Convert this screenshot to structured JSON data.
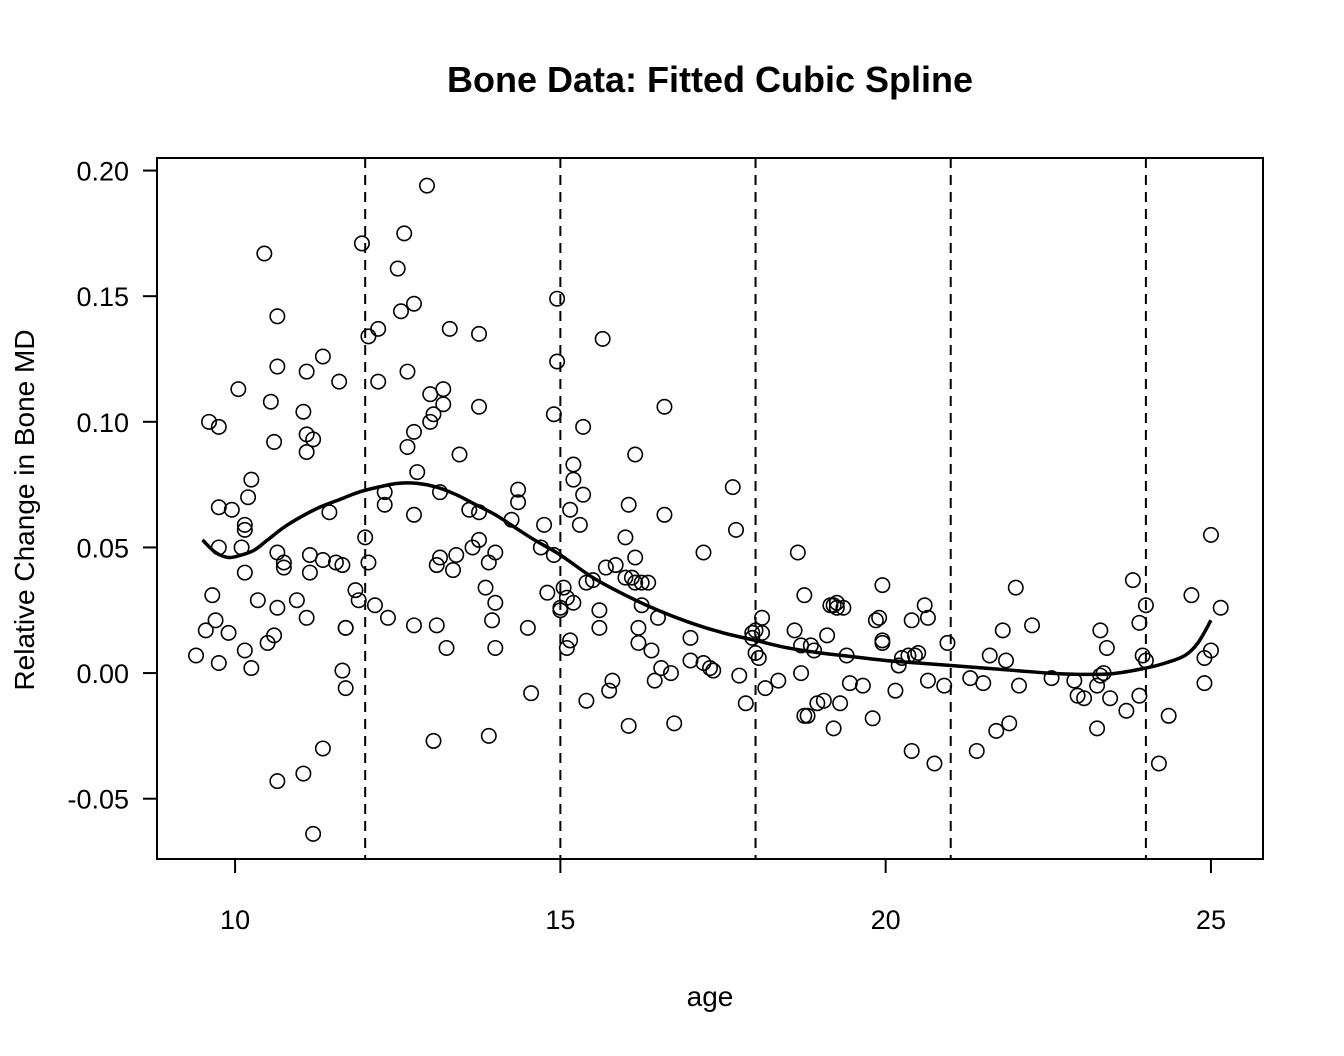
{
  "chart_data": {
    "type": "scatter",
    "title": "Bone Data: Fitted Cubic Spline",
    "xlabel": "age",
    "ylabel": "Relative Change in Bone MD",
    "xlim": [
      8.8,
      25.8
    ],
    "ylim": [
      -0.074,
      0.205
    ],
    "x_ticks": [
      10,
      15,
      20,
      25
    ],
    "y_ticks": [
      -0.05,
      0.0,
      0.05,
      0.1,
      0.15,
      0.2
    ],
    "x_tick_labels": [
      "10",
      "15",
      "20",
      "25"
    ],
    "y_tick_labels": [
      "-0.05",
      "0.00",
      "0.05",
      "0.10",
      "0.15",
      "0.20"
    ],
    "knots": [
      12,
      15,
      18,
      21,
      24
    ],
    "grid": false,
    "legend": "none",
    "series": [
      {
        "type": "scatter",
        "marker": "open-circle",
        "color": "#000000",
        "points": [
          [
            9.4,
            0.007
          ],
          [
            9.55,
            0.017
          ],
          [
            9.6,
            0.1
          ],
          [
            9.65,
            0.031
          ],
          [
            9.7,
            0.021
          ],
          [
            9.75,
            0.098
          ],
          [
            9.75,
            0.066
          ],
          [
            9.75,
            0.05
          ],
          [
            9.75,
            0.004
          ],
          [
            9.9,
            0.016
          ],
          [
            9.95,
            0.065
          ],
          [
            10.05,
            0.113
          ],
          [
            10.1,
            0.05
          ],
          [
            10.15,
            0.059
          ],
          [
            10.15,
            0.057
          ],
          [
            10.15,
            0.04
          ],
          [
            10.15,
            0.009
          ],
          [
            10.2,
            0.07
          ],
          [
            10.25,
            0.077
          ],
          [
            10.25,
            0.002
          ],
          [
            10.35,
            0.029
          ],
          [
            10.45,
            0.167
          ],
          [
            10.5,
            0.012
          ],
          [
            10.55,
            0.108
          ],
          [
            10.6,
            0.092
          ],
          [
            10.6,
            0.015
          ],
          [
            10.65,
            0.142
          ],
          [
            10.65,
            0.122
          ],
          [
            10.65,
            0.048
          ],
          [
            10.65,
            0.026
          ],
          [
            10.65,
            -0.043
          ],
          [
            10.75,
            0.044
          ],
          [
            10.75,
            0.042
          ],
          [
            10.95,
            0.029
          ],
          [
            11.05,
            0.104
          ],
          [
            11.05,
            -0.04
          ],
          [
            11.1,
            0.12
          ],
          [
            11.1,
            0.095
          ],
          [
            11.1,
            0.088
          ],
          [
            11.1,
            0.022
          ],
          [
            11.15,
            0.047
          ],
          [
            11.15,
            0.04
          ],
          [
            11.2,
            0.093
          ],
          [
            11.2,
            -0.064
          ],
          [
            11.35,
            0.126
          ],
          [
            11.35,
            0.045
          ],
          [
            11.35,
            -0.03
          ],
          [
            11.45,
            0.064
          ],
          [
            11.55,
            0.044
          ],
          [
            11.6,
            0.116
          ],
          [
            11.65,
            0.043
          ],
          [
            11.65,
            0.001
          ],
          [
            11.7,
            0.018
          ],
          [
            11.7,
            0.018
          ],
          [
            11.7,
            -0.006
          ],
          [
            11.85,
            0.033
          ],
          [
            11.9,
            0.029
          ],
          [
            11.95,
            0.171
          ],
          [
            12.0,
            0.054
          ],
          [
            12.05,
            0.134
          ],
          [
            12.05,
            0.044
          ],
          [
            12.15,
            0.027
          ],
          [
            12.2,
            0.137
          ],
          [
            12.2,
            0.116
          ],
          [
            12.3,
            0.072
          ],
          [
            12.3,
            0.067
          ],
          [
            12.35,
            0.022
          ],
          [
            12.5,
            0.161
          ],
          [
            12.55,
            0.144
          ],
          [
            12.6,
            0.175
          ],
          [
            12.65,
            0.12
          ],
          [
            12.65,
            0.09
          ],
          [
            12.75,
            0.147
          ],
          [
            12.75,
            0.096
          ],
          [
            12.75,
            0.063
          ],
          [
            12.75,
            0.019
          ],
          [
            12.8,
            0.08
          ],
          [
            12.95,
            0.194
          ],
          [
            13.0,
            0.111
          ],
          [
            13.0,
            0.1
          ],
          [
            13.05,
            0.103
          ],
          [
            13.05,
            -0.027
          ],
          [
            13.1,
            0.043
          ],
          [
            13.1,
            0.019
          ],
          [
            13.15,
            0.072
          ],
          [
            13.15,
            0.046
          ],
          [
            13.2,
            0.113
          ],
          [
            13.2,
            0.107
          ],
          [
            13.25,
            0.01
          ],
          [
            13.3,
            0.137
          ],
          [
            13.35,
            0.041
          ],
          [
            13.4,
            0.047
          ],
          [
            13.45,
            0.087
          ],
          [
            13.6,
            0.065
          ],
          [
            13.65,
            0.05
          ],
          [
            13.75,
            0.064
          ],
          [
            13.75,
            0.053
          ],
          [
            13.75,
            0.135
          ],
          [
            13.75,
            0.106
          ],
          [
            13.85,
            0.034
          ],
          [
            13.9,
            0.044
          ],
          [
            13.9,
            -0.025
          ],
          [
            13.95,
            0.021
          ],
          [
            14.0,
            0.048
          ],
          [
            14.0,
            0.028
          ],
          [
            14.0,
            0.01
          ],
          [
            14.25,
            0.061
          ],
          [
            14.35,
            0.073
          ],
          [
            14.35,
            0.068
          ],
          [
            14.5,
            0.018
          ],
          [
            14.55,
            -0.008
          ],
          [
            14.7,
            0.05
          ],
          [
            14.75,
            0.059
          ],
          [
            14.8,
            0.032
          ],
          [
            14.9,
            0.047
          ],
          [
            14.9,
            0.103
          ],
          [
            14.95,
            0.149
          ],
          [
            14.95,
            0.124
          ],
          [
            15.0,
            0.025
          ],
          [
            15.0,
            0.026
          ],
          [
            15.05,
            0.034
          ],
          [
            15.1,
            0.03
          ],
          [
            15.1,
            0.01
          ],
          [
            15.15,
            0.065
          ],
          [
            15.15,
            0.013
          ],
          [
            15.2,
            0.083
          ],
          [
            15.2,
            0.077
          ],
          [
            15.2,
            0.028
          ],
          [
            15.3,
            0.059
          ],
          [
            15.35,
            0.098
          ],
          [
            15.35,
            0.071
          ],
          [
            15.4,
            0.036
          ],
          [
            15.4,
            -0.011
          ],
          [
            15.5,
            0.037
          ],
          [
            15.6,
            0.018
          ],
          [
            15.6,
            0.025
          ],
          [
            15.65,
            0.133
          ],
          [
            15.7,
            0.042
          ],
          [
            15.75,
            -0.007
          ],
          [
            15.8,
            -0.003
          ],
          [
            15.85,
            0.043
          ],
          [
            16.0,
            0.054
          ],
          [
            16.0,
            0.038
          ],
          [
            16.05,
            0.067
          ],
          [
            16.05,
            -0.021
          ],
          [
            16.1,
            0.038
          ],
          [
            16.15,
            0.087
          ],
          [
            16.15,
            0.046
          ],
          [
            16.15,
            0.036
          ],
          [
            16.2,
            0.018
          ],
          [
            16.2,
            0.012
          ],
          [
            16.25,
            0.036
          ],
          [
            16.25,
            0.027
          ],
          [
            16.35,
            0.036
          ],
          [
            16.4,
            0.009
          ],
          [
            16.45,
            -0.003
          ],
          [
            16.5,
            0.022
          ],
          [
            16.55,
            0.002
          ],
          [
            16.6,
            0.106
          ],
          [
            16.6,
            0.063
          ],
          [
            16.7,
            0.0
          ],
          [
            16.75,
            -0.02
          ],
          [
            17.0,
            0.014
          ],
          [
            17.0,
            0.005
          ],
          [
            17.2,
            0.048
          ],
          [
            17.2,
            0.004
          ],
          [
            17.3,
            0.002
          ],
          [
            17.35,
            0.001
          ],
          [
            17.65,
            0.074
          ],
          [
            17.7,
            0.057
          ],
          [
            17.75,
            -0.001
          ],
          [
            17.85,
            -0.012
          ],
          [
            17.95,
            0.014
          ],
          [
            17.95,
            0.016
          ],
          [
            18.0,
            0.017
          ],
          [
            18.0,
            0.008
          ],
          [
            18.05,
            0.006
          ],
          [
            18.1,
            0.016
          ],
          [
            18.1,
            0.022
          ],
          [
            18.15,
            -0.006
          ],
          [
            18.35,
            -0.003
          ],
          [
            18.6,
            0.017
          ],
          [
            18.65,
            0.048
          ],
          [
            18.7,
            0.011
          ],
          [
            18.7,
            0.0
          ],
          [
            18.75,
            0.031
          ],
          [
            18.75,
            -0.017
          ],
          [
            18.8,
            -0.017
          ],
          [
            18.85,
            0.011
          ],
          [
            18.9,
            0.009
          ],
          [
            18.95,
            -0.012
          ],
          [
            19.05,
            -0.011
          ],
          [
            19.1,
            0.015
          ],
          [
            19.15,
            0.027
          ],
          [
            19.2,
            0.027
          ],
          [
            19.2,
            -0.022
          ],
          [
            19.25,
            0.028
          ],
          [
            19.25,
            0.026
          ],
          [
            19.3,
            -0.012
          ],
          [
            19.35,
            0.026
          ],
          [
            19.4,
            0.007
          ],
          [
            19.45,
            -0.004
          ],
          [
            19.65,
            -0.005
          ],
          [
            19.8,
            -0.018
          ],
          [
            19.85,
            0.021
          ],
          [
            19.9,
            0.022
          ],
          [
            19.95,
            0.035
          ],
          [
            19.95,
            0.013
          ],
          [
            19.95,
            0.012
          ],
          [
            20.15,
            -0.007
          ],
          [
            20.2,
            0.003
          ],
          [
            20.25,
            0.006
          ],
          [
            20.35,
            0.007
          ],
          [
            20.4,
            0.021
          ],
          [
            20.4,
            -0.031
          ],
          [
            20.45,
            0.007
          ],
          [
            20.5,
            0.008
          ],
          [
            20.6,
            0.027
          ],
          [
            20.65,
            0.022
          ],
          [
            20.65,
            -0.003
          ],
          [
            20.75,
            -0.036
          ],
          [
            20.9,
            -0.005
          ],
          [
            20.95,
            0.012
          ],
          [
            21.3,
            -0.002
          ],
          [
            21.4,
            -0.031
          ],
          [
            21.5,
            -0.004
          ],
          [
            21.6,
            0.007
          ],
          [
            21.7,
            -0.023
          ],
          [
            21.8,
            0.017
          ],
          [
            21.85,
            0.005
          ],
          [
            21.9,
            -0.02
          ],
          [
            22.0,
            0.034
          ],
          [
            22.05,
            -0.005
          ],
          [
            22.25,
            0.019
          ],
          [
            22.55,
            -0.002
          ],
          [
            22.9,
            -0.003
          ],
          [
            22.95,
            -0.009
          ],
          [
            23.05,
            -0.01
          ],
          [
            23.25,
            -0.022
          ],
          [
            23.25,
            -0.005
          ],
          [
            23.3,
            0.017
          ],
          [
            23.3,
            -0.001
          ],
          [
            23.35,
            0.0
          ],
          [
            23.4,
            0.01
          ],
          [
            23.45,
            -0.01
          ],
          [
            23.7,
            -0.015
          ],
          [
            23.8,
            0.037
          ],
          [
            23.9,
            0.02
          ],
          [
            23.9,
            -0.009
          ],
          [
            23.95,
            0.007
          ],
          [
            24.0,
            0.005
          ],
          [
            24.0,
            0.027
          ],
          [
            24.2,
            -0.036
          ],
          [
            24.35,
            -0.017
          ],
          [
            24.7,
            0.031
          ],
          [
            24.9,
            0.006
          ],
          [
            24.9,
            -0.004
          ],
          [
            25.0,
            0.055
          ],
          [
            25.0,
            0.009
          ],
          [
            25.15,
            0.026
          ]
        ]
      },
      {
        "type": "line",
        "style": "solid",
        "color": "#000000",
        "points": [
          [
            9.5,
            0.053
          ],
          [
            9.7,
            0.048
          ],
          [
            9.9,
            0.046
          ],
          [
            10.1,
            0.047
          ],
          [
            10.3,
            0.049
          ],
          [
            10.5,
            0.053
          ],
          [
            10.75,
            0.058
          ],
          [
            11.0,
            0.062
          ],
          [
            11.3,
            0.066
          ],
          [
            11.6,
            0.069
          ],
          [
            11.9,
            0.072
          ],
          [
            12.2,
            0.074
          ],
          [
            12.5,
            0.0755
          ],
          [
            12.8,
            0.0755
          ],
          [
            13.1,
            0.074
          ],
          [
            13.4,
            0.071
          ],
          [
            13.7,
            0.067
          ],
          [
            14.0,
            0.063
          ],
          [
            14.3,
            0.058
          ],
          [
            14.6,
            0.053
          ],
          [
            15.0,
            0.047
          ],
          [
            15.5,
            0.038
          ],
          [
            16.0,
            0.031
          ],
          [
            16.5,
            0.025
          ],
          [
            17.0,
            0.02
          ],
          [
            17.5,
            0.016
          ],
          [
            18.0,
            0.013
          ],
          [
            18.5,
            0.01
          ],
          [
            19.0,
            0.008
          ],
          [
            19.5,
            0.0065
          ],
          [
            20.0,
            0.005
          ],
          [
            20.5,
            0.004
          ],
          [
            21.0,
            0.003
          ],
          [
            21.5,
            0.002
          ],
          [
            22.0,
            0.001
          ],
          [
            22.5,
            0.0
          ],
          [
            23.0,
            -0.0005
          ],
          [
            23.5,
            -0.0002
          ],
          [
            24.0,
            0.002
          ],
          [
            24.3,
            0.004
          ],
          [
            24.6,
            0.007
          ],
          [
            24.8,
            0.012
          ],
          [
            25.0,
            0.021
          ]
        ]
      }
    ]
  }
}
